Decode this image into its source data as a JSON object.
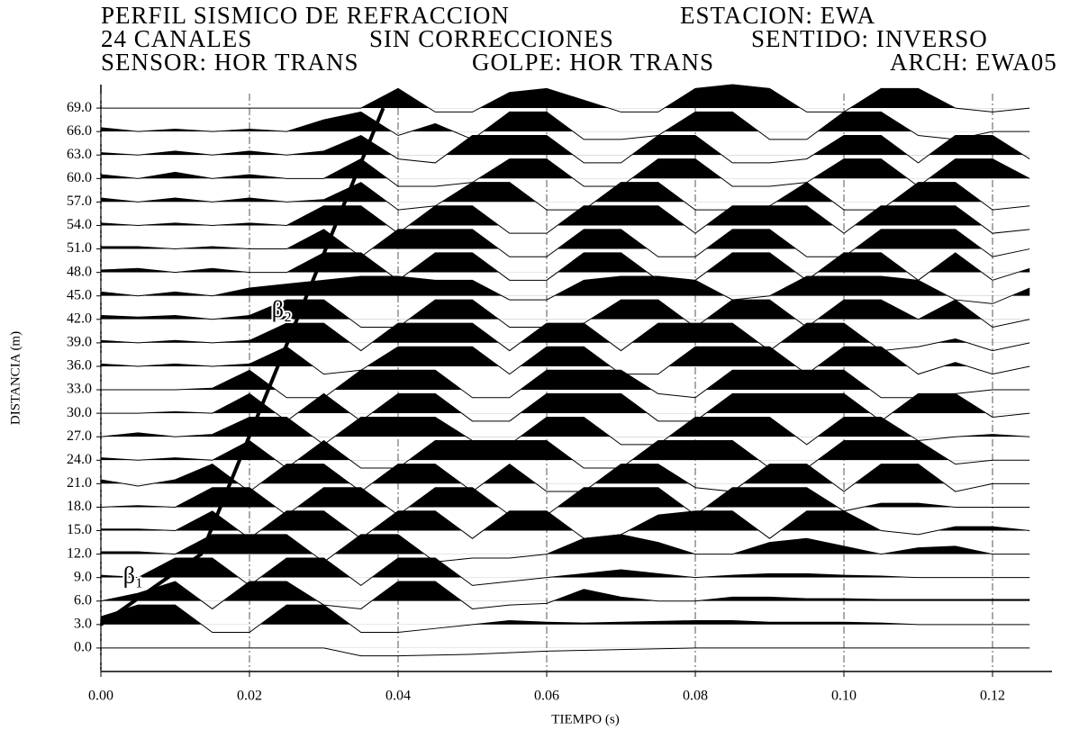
{
  "chart_data": {
    "type": "seismogram",
    "title_lines": [
      [
        "PERFIL SISMICO DE REFRACCION",
        "ESTACION: EWA"
      ],
      [
        "24 CANALES",
        "SIN CORRECCIONES",
        "SENTIDO: INVERSO"
      ],
      [
        "SENSOR: HOR TRANS",
        "GOLPE: HOR TRANS",
        "ARCH: EWA05"
      ]
    ],
    "x_label": "TIEMPO (s)",
    "y_label": "DISTANCIA (m)",
    "xlim": [
      0,
      0.128
    ],
    "ylim": [
      -3,
      72
    ],
    "xticks": [
      {
        "value": 0,
        "label": "0.00"
      },
      {
        "value": 0.02,
        "label": "0.02"
      },
      {
        "value": 0.04,
        "label": "0.04"
      },
      {
        "value": 0.06,
        "label": "0.06"
      },
      {
        "value": 0.08,
        "label": "0.08"
      },
      {
        "value": 0.1,
        "label": "0.10"
      },
      {
        "value": 0.12,
        "label": "0.12"
      }
    ],
    "yticks": [
      {
        "value": 0,
        "label": "0.0"
      },
      {
        "value": 3,
        "label": "3.0"
      },
      {
        "value": 6,
        "label": "6.0"
      },
      {
        "value": 9,
        "label": "9.0"
      },
      {
        "value": 12,
        "label": "12.0"
      },
      {
        "value": 15,
        "label": "15.0"
      },
      {
        "value": 18,
        "label": "18.0"
      },
      {
        "value": 21,
        "label": "21.0"
      },
      {
        "value": 24,
        "label": "24.0"
      },
      {
        "value": 27,
        "label": "27.0"
      },
      {
        "value": 30,
        "label": "30.0"
      },
      {
        "value": 33,
        "label": "33.0"
      },
      {
        "value": 36,
        "label": "36.0"
      },
      {
        "value": 39,
        "label": "39.0"
      },
      {
        "value": 42,
        "label": "42.0"
      },
      {
        "value": 45,
        "label": "45.0"
      },
      {
        "value": 48,
        "label": "48.0"
      },
      {
        "value": 51,
        "label": "51.0"
      },
      {
        "value": 54,
        "label": "54.0"
      },
      {
        "value": 57,
        "label": "57.0"
      },
      {
        "value": 60,
        "label": "60.0"
      },
      {
        "value": 63,
        "label": "63.0"
      },
      {
        "value": 66,
        "label": "66.0"
      },
      {
        "value": 69,
        "label": "69.0"
      }
    ],
    "grid": true,
    "color": "#000000",
    "x": [
      0,
      0.005,
      0.01,
      0.015,
      0.02,
      0.025,
      0.03,
      0.035,
      0.04,
      0.045,
      0.05,
      0.055,
      0.06,
      0.065,
      0.07,
      0.075,
      0.08,
      0.085,
      0.09,
      0.095,
      0.1,
      0.105,
      0.11,
      0.115,
      0.12,
      0.125
    ],
    "series": [
      {
        "offset": 0,
        "values": [
          0,
          0,
          0,
          0,
          0,
          0,
          0,
          -1,
          -1,
          -0.9,
          -0.8,
          -0.6,
          -0.4,
          -0.3,
          -0.2,
          -0.1,
          0,
          0,
          0,
          0,
          0,
          0,
          0,
          0,
          0,
          0
        ]
      },
      {
        "offset": 3,
        "values": [
          1,
          2.5,
          2.5,
          -1,
          -1,
          2.5,
          2.5,
          -1,
          -1,
          -0.5,
          0,
          0.5,
          0.3,
          0.2,
          0.3,
          0.4,
          0.5,
          0.5,
          0.3,
          0.3,
          0.3,
          0.2,
          0,
          0,
          0,
          0
        ]
      },
      {
        "offset": 6,
        "values": [
          0,
          1,
          2.5,
          -1,
          2.5,
          2.5,
          -0.5,
          -1,
          2.5,
          2.5,
          -1,
          -0.5,
          -0.3,
          1.5,
          0.5,
          0,
          0,
          0.5,
          0.5,
          0.3,
          0.3,
          0.2,
          0.2,
          0.2,
          0.2,
          0.2
        ]
      },
      {
        "offset": 9,
        "values": [
          0.3,
          0,
          2.5,
          2.5,
          -1,
          2.5,
          2.5,
          -1,
          2.5,
          2.5,
          -1,
          -0.5,
          0,
          0.5,
          1,
          0.5,
          0,
          0.3,
          0.5,
          0.5,
          0.3,
          0.2,
          0,
          0,
          0,
          0
        ]
      },
      {
        "offset": 12,
        "values": [
          0.3,
          0.3,
          0,
          2.5,
          2.5,
          2.5,
          -1,
          2.5,
          2.5,
          -1,
          -0.5,
          -0.5,
          0,
          2,
          2.5,
          1.5,
          0,
          0,
          1.5,
          2,
          1,
          0,
          0.8,
          1,
          0,
          0
        ]
      },
      {
        "offset": 15,
        "values": [
          0.2,
          0.2,
          0,
          2.5,
          -1,
          2.5,
          2.5,
          -1,
          2.5,
          2.5,
          -1,
          2.5,
          2.5,
          -1,
          -0.5,
          2,
          2.5,
          2.5,
          -1,
          2.5,
          2.5,
          0,
          -0.5,
          0.5,
          0.5,
          0
        ]
      },
      {
        "offset": 18,
        "values": [
          0,
          0.2,
          0,
          2.5,
          2.5,
          -1,
          2.5,
          2.5,
          -1,
          2.5,
          2.5,
          -1,
          -1,
          2.5,
          2.5,
          2.5,
          -1,
          2.5,
          2.5,
          2.5,
          -0.5,
          0.5,
          0.5,
          0,
          0,
          0
        ]
      },
      {
        "offset": 21,
        "values": [
          0.5,
          -0.3,
          0.5,
          2.5,
          -1,
          2.5,
          2.5,
          -1,
          2.5,
          2.5,
          -1,
          2.5,
          -1,
          -1,
          2.5,
          2.5,
          -0.5,
          -1,
          2.5,
          2.5,
          -1,
          2.5,
          2.5,
          -1,
          0,
          0
        ]
      },
      {
        "offset": 24,
        "values": [
          0.3,
          0,
          0.3,
          0,
          2.5,
          -1,
          2.5,
          -1,
          -1,
          2.5,
          2.5,
          2.5,
          2.5,
          -1,
          -1,
          2.5,
          2.5,
          2.5,
          -1,
          -1,
          2.5,
          2.5,
          2.5,
          -0.5,
          0,
          0
        ]
      },
      {
        "offset": 27,
        "values": [
          0,
          0.5,
          0,
          0.3,
          2.5,
          2.5,
          -1,
          2.5,
          2.5,
          2.5,
          -0.5,
          -1,
          2.5,
          2.5,
          -1,
          -1,
          2.5,
          2.5,
          2.5,
          -1,
          2.5,
          2.5,
          -0.5,
          0,
          0.3,
          0
        ]
      },
      {
        "offset": 30,
        "values": [
          0,
          0,
          0.2,
          0,
          2.5,
          -1,
          2.5,
          -1,
          2.5,
          2.5,
          -1,
          -1,
          2.5,
          2.5,
          2.5,
          -1,
          -1,
          2.5,
          2.5,
          2.5,
          2.5,
          -1,
          2.5,
          2.5,
          -0.5,
          0
        ]
      },
      {
        "offset": 33,
        "values": [
          0,
          0,
          0,
          0.2,
          2.5,
          -1,
          -1,
          2.5,
          2.5,
          2.5,
          -1,
          -1,
          2.5,
          2.5,
          2.5,
          -0.5,
          -1,
          2.5,
          2.5,
          2.5,
          2.5,
          -1,
          -1,
          -0.5,
          0,
          0
        ]
      },
      {
        "offset": 36,
        "values": [
          0.3,
          0,
          0.3,
          0,
          0.3,
          2.5,
          -1,
          -0.5,
          2.5,
          2.5,
          2.5,
          -1,
          2.5,
          2.5,
          -1,
          -1,
          2.5,
          2.5,
          2.5,
          -1,
          2.5,
          2.5,
          -1,
          0.5,
          -1,
          0
        ]
      },
      {
        "offset": 39,
        "values": [
          0.3,
          0,
          0.3,
          0,
          0.3,
          2.5,
          2.5,
          -1,
          2.5,
          2.5,
          2.5,
          -1,
          2.5,
          2.5,
          -1,
          2.5,
          2.5,
          2.5,
          -1,
          2.5,
          2.5,
          -1,
          -0.5,
          0.5,
          -1,
          0
        ]
      },
      {
        "offset": 42,
        "values": [
          0.5,
          0.3,
          0.5,
          0,
          0.5,
          2.5,
          2.5,
          -1,
          -1,
          2.5,
          2.5,
          -1,
          -1,
          -0.5,
          2.5,
          2.5,
          -1,
          2.5,
          2.5,
          -1,
          2.5,
          2.5,
          0,
          2.5,
          -1,
          0
        ]
      },
      {
        "offset": 45,
        "values": [
          0.5,
          0,
          0.5,
          0,
          1,
          1.5,
          2,
          2.5,
          2.5,
          2,
          2,
          -0.5,
          -0.5,
          2,
          2.5,
          2.5,
          2,
          -0.5,
          0,
          2.5,
          2.5,
          2.5,
          2,
          -0.5,
          -1,
          1
        ]
      },
      {
        "offset": 48,
        "values": [
          0.3,
          0.5,
          0,
          0.5,
          0,
          0,
          2.5,
          2.5,
          -1,
          2.5,
          2.5,
          -1,
          -1,
          2.5,
          2.5,
          -1,
          -1,
          2.5,
          2.5,
          -1,
          2.5,
          2.5,
          -1,
          2.5,
          -1,
          0.5
        ]
      },
      {
        "offset": 51,
        "values": [
          0.3,
          0.3,
          0,
          0.3,
          0,
          0,
          2.5,
          -1,
          2.5,
          2.5,
          2.5,
          -1,
          -1,
          2.5,
          2.5,
          -1,
          -1,
          2.5,
          2.5,
          -1,
          -1,
          2.5,
          2.5,
          2.5,
          -1,
          0
        ]
      },
      {
        "offset": 54,
        "values": [
          0.3,
          0,
          0.3,
          0,
          0.3,
          0,
          2.5,
          2.5,
          -1,
          2.5,
          2.5,
          -1,
          -1,
          2.5,
          2.5,
          2.5,
          -1,
          2.5,
          2.5,
          2.5,
          -1,
          2.5,
          2.5,
          2.5,
          -1,
          -0.5
        ]
      },
      {
        "offset": 57,
        "values": [
          0.5,
          0,
          0.5,
          0,
          0.5,
          0,
          0.3,
          2.5,
          -1,
          -0.5,
          2.5,
          2.5,
          -1,
          -1,
          2.5,
          2.5,
          -1,
          -1,
          -0.5,
          2.5,
          -1,
          -1,
          2.5,
          2.5,
          -1,
          -0.5
        ]
      },
      {
        "offset": 60,
        "values": [
          0.5,
          0,
          0.8,
          0,
          0.5,
          0,
          0,
          2.5,
          -1,
          -1,
          -0.5,
          2.5,
          2.5,
          -1,
          -1,
          2.5,
          2.5,
          -1,
          -1,
          -0.5,
          2.5,
          2.5,
          -1,
          2.5,
          2.5,
          0
        ]
      },
      {
        "offset": 63,
        "values": [
          0.3,
          0,
          0.5,
          0,
          0.5,
          0,
          0.5,
          2.5,
          -0.5,
          -1,
          2.5,
          2.5,
          2.5,
          -1,
          -1,
          2.5,
          2.5,
          -1,
          -1,
          -0.5,
          2.5,
          2.5,
          -1,
          2.5,
          2.5,
          -0.5
        ]
      },
      {
        "offset": 66,
        "values": [
          0.5,
          0,
          0.3,
          0,
          0.3,
          0,
          1.5,
          2.5,
          -0.5,
          1,
          -1,
          2.5,
          2.5,
          -1,
          -1,
          -0.5,
          2.5,
          2.5,
          -1,
          -1,
          2.5,
          2.5,
          -0.5,
          -1,
          0,
          0
        ]
      },
      {
        "offset": 69,
        "values": [
          0,
          0,
          0,
          0,
          0,
          0,
          0,
          0,
          2.5,
          -0.5,
          -0.5,
          2,
          2.5,
          1,
          -0.5,
          -0.5,
          2.5,
          3,
          2.5,
          -0.5,
          -0.5,
          2.5,
          2.5,
          0,
          -0.5,
          0
        ]
      }
    ],
    "first_arrival": {
      "x": [
        0,
        0.0135,
        0.038
      ],
      "values": [
        3,
        12,
        69
      ]
    },
    "annotations": [
      {
        "text": "β₁",
        "x": 0.003,
        "y": 9
      },
      {
        "text": "β₂",
        "x": 0.023,
        "y": 43
      }
    ]
  }
}
